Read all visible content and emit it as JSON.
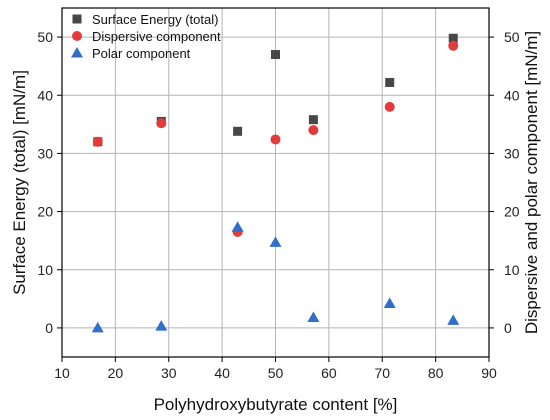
{
  "chart_data": {
    "type": "scatter",
    "title": "",
    "xlabel": "Polyhydroxybutyrate content [%]",
    "ylabel_left": "Surface Energy (total) [mN/m]",
    "ylabel_right": "Dispersive and polar component [mN/m]",
    "xlim": [
      10,
      90
    ],
    "ylim": [
      -5,
      55
    ],
    "xticks": [
      10,
      20,
      30,
      40,
      50,
      60,
      70,
      80,
      90
    ],
    "yticks": [
      0,
      10,
      20,
      30,
      40,
      50
    ],
    "grid": true,
    "legend_position": "top-left",
    "series": [
      {
        "name": "Surface Energy (total)",
        "marker": "square",
        "color": "#474747",
        "x": [
          16.7,
          28.6,
          42.9,
          50.0,
          57.1,
          71.4,
          83.3
        ],
        "y": [
          32.0,
          35.5,
          33.8,
          47.0,
          35.8,
          42.2,
          49.8
        ]
      },
      {
        "name": "Dispersive component",
        "marker": "circle",
        "color": "#e33b3b",
        "x": [
          16.7,
          28.6,
          42.9,
          50.0,
          57.1,
          71.4,
          83.3
        ],
        "y": [
          32.0,
          35.2,
          16.5,
          32.4,
          34.0,
          38.0,
          48.5
        ]
      },
      {
        "name": "Polar component",
        "marker": "triangle",
        "color": "#2f6fca",
        "x": [
          16.7,
          28.6,
          42.9,
          50.0,
          57.1,
          71.4,
          83.3
        ],
        "y": [
          0.0,
          0.3,
          17.3,
          14.7,
          1.8,
          4.2,
          1.3
        ]
      }
    ]
  }
}
